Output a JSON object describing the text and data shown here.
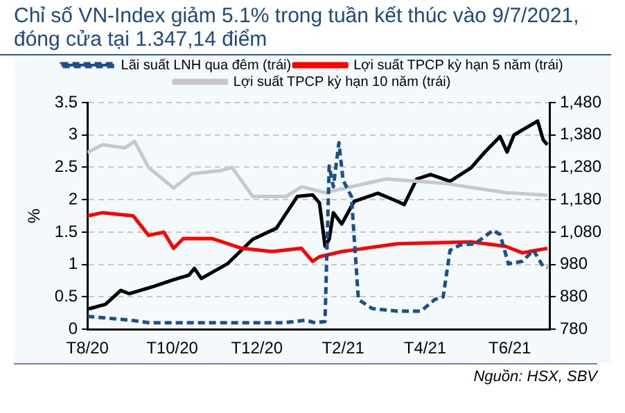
{
  "chart_data": {
    "type": "line",
    "title": "Chỉ số VN-Index giảm 5.1% trong tuần kết thúc vào 9/7/2021, đóng cửa tại 1.347,14 điểm",
    "ylabel": "%",
    "annotations": [
      "Nguồn: HSX, SBV"
    ],
    "legend": "top",
    "grid": "y",
    "marker": "none",
    "xlim": [
      "2020-08-01",
      "2021-06-30"
    ],
    "xticks": [
      {
        "value": "2020-08-01",
        "label": "T8/20"
      },
      {
        "value": "2020-10-01",
        "label": "T10/20"
      },
      {
        "value": "2020-12-01",
        "label": "T12/20"
      },
      {
        "value": "2021-02-01",
        "label": "T2/21"
      },
      {
        "value": "2021-04-01",
        "label": "T4/21"
      },
      {
        "value": "2021-06-01",
        "label": "T6/21"
      }
    ],
    "ylim": [
      0,
      3.5
    ],
    "yticks": [
      0,
      {
        "value": 0.5,
        "label": "0.5"
      },
      1,
      {
        "value": 1.5,
        "label": "1.5"
      },
      2,
      {
        "value": 2.5,
        "label": "2.5"
      },
      3,
      {
        "value": 3.5,
        "label": "3.5"
      }
    ],
    "y2lim": [
      780,
      1480
    ],
    "y2ticks": [
      {
        "value": 780,
        "label": "780"
      },
      {
        "value": 880,
        "label": "880"
      },
      {
        "value": 980,
        "label": "980"
      },
      {
        "value": 1080,
        "label": "1,080"
      },
      {
        "value": 1180,
        "label": "1,180"
      },
      {
        "value": 1280,
        "label": "1,280"
      },
      {
        "value": 1380,
        "label": "1,380"
      },
      {
        "value": 1480,
        "label": "1,480"
      }
    ],
    "series": [
      {
        "name": "Lãi suất LNH qua đêm (trái)",
        "color": "#1f4e8c",
        "line_style": "dashed",
        "x": [
          "2020-08-01",
          "2020-09-01",
          "2020-09-15",
          "2020-11-01",
          "2020-12-20",
          "2021-01-05",
          "2021-01-12",
          "2021-01-19",
          "2021-01-22",
          "2021-01-25",
          "2021-01-29",
          "2021-02-01",
          "2021-02-07",
          "2021-02-12",
          "2021-02-22",
          "2021-03-12",
          "2021-03-29",
          "2021-04-08",
          "2021-04-14",
          "2021-04-19",
          "2021-04-26",
          "2021-05-07",
          "2021-05-20",
          "2021-05-25",
          "2021-05-31",
          "2021-06-10",
          "2021-06-18",
          "2021-06-25",
          "2021-06-28"
        ],
        "values": [
          0.2,
          0.14,
          0.1,
          0.1,
          0.1,
          0.14,
          0.1,
          0.12,
          2.52,
          2.2,
          2.88,
          2.3,
          2.05,
          0.46,
          0.32,
          0.28,
          0.28,
          0.46,
          0.5,
          1.22,
          1.3,
          1.32,
          1.53,
          1.46,
          1.01,
          1.05,
          1.22,
          0.97,
          0.95
        ]
      },
      {
        "name": "Lợi suất TPCP kỳ hạn 5 năm (trái)",
        "color": "#ff0000",
        "x": [
          "2020-08-01",
          "2020-08-12",
          "2020-09-03",
          "2020-09-14",
          "2020-09-25",
          "2020-10-02",
          "2020-10-09",
          "2020-10-30",
          "2020-11-20",
          "2020-12-12",
          "2021-01-02",
          "2021-01-10",
          "2021-01-15",
          "2021-01-31",
          "2021-03-12",
          "2021-05-04",
          "2021-05-29",
          "2021-06-10",
          "2021-06-28"
        ],
        "values": [
          1.75,
          1.8,
          1.75,
          1.45,
          1.5,
          1.25,
          1.4,
          1.4,
          1.25,
          1.2,
          1.25,
          1.05,
          1.12,
          1.2,
          1.32,
          1.35,
          1.28,
          1.18,
          1.25
        ]
      },
      {
        "name": "Lợi suất TPCP kỳ hạn 10 năm (trái)",
        "color": "#c8c8c8",
        "x": [
          "2020-08-01",
          "2020-08-12",
          "2020-08-28",
          "2020-09-04",
          "2020-09-14",
          "2020-10-02",
          "2020-10-15",
          "2020-11-05",
          "2020-11-13",
          "2020-11-28",
          "2020-12-22",
          "2021-01-02",
          "2021-01-19",
          "2021-03-04",
          "2021-04-16",
          "2021-05-29",
          "2021-06-28"
        ],
        "values": [
          2.73,
          2.85,
          2.8,
          2.9,
          2.5,
          2.18,
          2.4,
          2.45,
          2.5,
          2.05,
          2.05,
          2.2,
          2.11,
          2.32,
          2.25,
          2.11,
          2.07
        ]
      },
      {
        "color": "#000000",
        "axis": "y2",
        "x": [
          "2020-08-02",
          "2020-08-14",
          "2020-08-25",
          "2020-08-31",
          "2020-09-18",
          "2020-10-02",
          "2020-10-13",
          "2020-10-17",
          "2020-10-22",
          "2020-11-10",
          "2020-11-28",
          "2020-12-15",
          "2020-12-30",
          "2021-01-10",
          "2021-01-15",
          "2021-01-19",
          "2021-01-22",
          "2021-01-25",
          "2021-01-31",
          "2021-02-09",
          "2021-02-26",
          "2021-03-12",
          "2021-03-17",
          "2021-03-26",
          "2021-04-05",
          "2021-04-19",
          "2021-05-04",
          "2021-05-14",
          "2021-05-25",
          "2021-05-30",
          "2021-06-04",
          "2021-06-21",
          "2021-06-25",
          "2021-06-28"
        ],
        "values": [
          843,
          857,
          900,
          890,
          913,
          933,
          947,
          968,
          937,
          983,
          1058,
          1092,
          1190,
          1195,
          1170,
          1037,
          1058,
          1140,
          1105,
          1175,
          1200,
          1175,
          1165,
          1244,
          1258,
          1237,
          1278,
          1327,
          1375,
          1327,
          1380,
          1423,
          1365,
          1350
        ]
      }
    ]
  }
}
